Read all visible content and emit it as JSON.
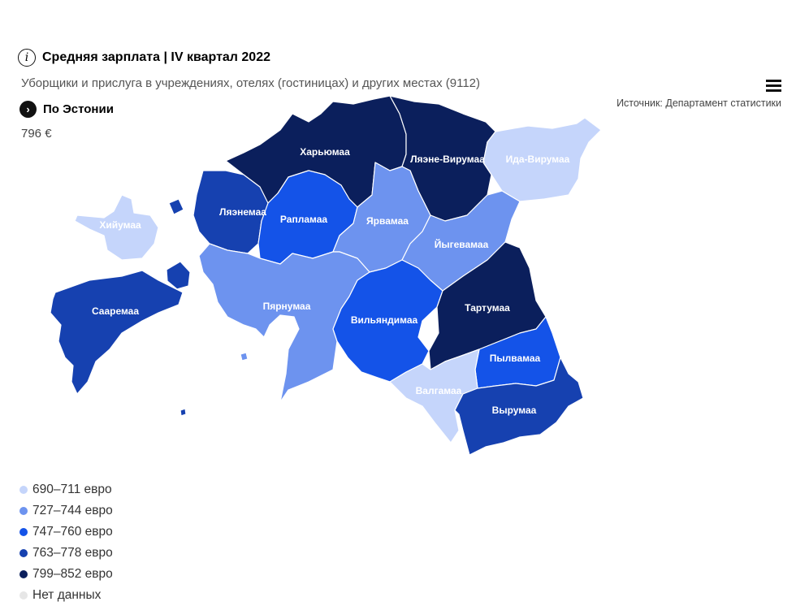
{
  "header": {
    "title": "Средняя зарплата | IV квартал 2022",
    "subtitle": "Уборщики и прислуга в учреждениях, отелях (гостиницах) и других местах (9112)",
    "source": "Источник: Департамент статистики",
    "estonia_label": "По Эстонии",
    "estonia_value": "796 €"
  },
  "icons": {
    "info": "info-icon",
    "arrow": "chevron-right-icon",
    "menu": "hamburger-menu-icon"
  },
  "colors": {
    "c1": "#c5d5fb",
    "c2": "#6d93ef",
    "c3": "#1453e8",
    "c4": "#1641b0",
    "c5": "#0b1f5c",
    "nodata": "#e6e6e6"
  },
  "regions": [
    {
      "id": "harju",
      "name": "Харьюмаа",
      "class": "c5"
    },
    {
      "id": "laane-viru",
      "name": "Ляэне-Вирумаа",
      "class": "c5"
    },
    {
      "id": "ida-viru",
      "name": "Ида-Вирумаа",
      "class": "c1"
    },
    {
      "id": "hiiu",
      "name": "Хийумаа",
      "class": "c1"
    },
    {
      "id": "laane",
      "name": "Ляэнемаа",
      "class": "c4"
    },
    {
      "id": "rapla",
      "name": "Рапламаа",
      "class": "c3"
    },
    {
      "id": "jarva",
      "name": "Ярвамаа",
      "class": "c2"
    },
    {
      "id": "jogeva",
      "name": "Йыгевамаа",
      "class": "c2"
    },
    {
      "id": "saare",
      "name": "Сааремаа",
      "class": "c4"
    },
    {
      "id": "parnu",
      "name": "Пярнумаа",
      "class": "c2"
    },
    {
      "id": "viljandi",
      "name": "Вильяндимаа",
      "class": "c3"
    },
    {
      "id": "tartu",
      "name": "Тартумаа",
      "class": "c5"
    },
    {
      "id": "polva",
      "name": "Пылвамаа",
      "class": "c3"
    },
    {
      "id": "valga",
      "name": "Валгамаа",
      "class": "c1"
    },
    {
      "id": "voru",
      "name": "Вырумаа",
      "class": "c4"
    }
  ],
  "legend": [
    {
      "label": "690–711 евро",
      "class": "c1"
    },
    {
      "label": "727–744 евро",
      "class": "c2"
    },
    {
      "label": "747–760 евро",
      "class": "c3"
    },
    {
      "label": "763–778 евро",
      "class": "c4"
    },
    {
      "label": "799–852 евро",
      "class": "c5"
    },
    {
      "label": "Нет данных",
      "class": "nodata"
    }
  ]
}
